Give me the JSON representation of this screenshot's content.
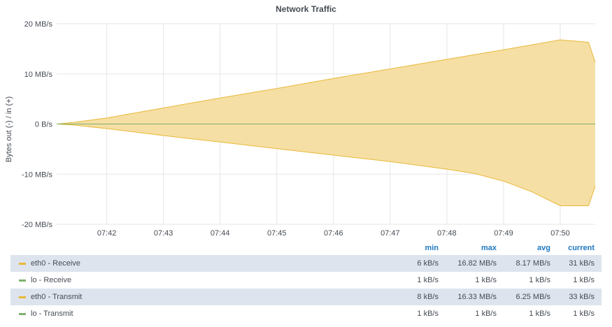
{
  "panel": {
    "title": "Network Traffic"
  },
  "chart_data": {
    "type": "area",
    "title": "Network Traffic",
    "ylabel": "Bytes out (-) / in (+)",
    "xlabel": "",
    "y_unit": "MB/s",
    "ylim": [
      -20,
      20
    ],
    "y_ticks": [
      20,
      10,
      0,
      -10,
      -20
    ],
    "y_tick_labels": [
      "20 MB/s",
      "10 MB/s",
      "0 B/s",
      "-10 MB/s",
      "-20 MB/s"
    ],
    "x_ticks": [
      "07:42",
      "07:43",
      "07:44",
      "07:45",
      "07:46",
      "07:47",
      "07:48",
      "07:49",
      "07:50"
    ],
    "grid": true,
    "series": [
      {
        "name": "eth0 - Receive",
        "color": "#eab839",
        "fill": "#f5dfa4",
        "x": [
          "07:41:07",
          "07:41:24",
          "07:42:00",
          "07:43:00",
          "07:44:00",
          "07:45:00",
          "07:46:00",
          "07:47:00",
          "07:48:00",
          "07:49:00",
          "07:50:00",
          "07:50:30",
          "07:50:37"
        ],
        "values": [
          0.0,
          0.3,
          1.2,
          3.2,
          5.2,
          7.1,
          9.1,
          11.0,
          12.9,
          14.8,
          16.8,
          16.3,
          12.3
        ]
      },
      {
        "name": "eth0 - Transmit",
        "color": "#eab839",
        "fill": "#f5dfa4",
        "x": [
          "07:41:07",
          "07:41:24",
          "07:42:00",
          "07:43:00",
          "07:44:00",
          "07:45:00",
          "07:46:00",
          "07:47:00",
          "07:48:00",
          "07:48:30",
          "07:49:00",
          "07:49:30",
          "07:50:00",
          "07:50:30",
          "07:50:37"
        ],
        "values": [
          0.0,
          -0.2,
          -0.9,
          -2.3,
          -3.6,
          -4.9,
          -6.2,
          -7.5,
          -9.0,
          -9.9,
          -11.4,
          -13.5,
          -16.3,
          -16.3,
          -12.4
        ]
      },
      {
        "name": "lo - Receive",
        "color": "#7eb26d",
        "x": [
          "07:41:07",
          "07:50:37"
        ],
        "values": [
          0.001,
          0.001
        ]
      },
      {
        "name": "lo - Transmit",
        "color": "#7eb26d",
        "x": [
          "07:41:07",
          "07:50:37"
        ],
        "values": [
          -0.001,
          -0.001
        ]
      }
    ]
  },
  "legend": {
    "headers": {
      "min": "min",
      "max": "max",
      "avg": "avg",
      "current": "current"
    },
    "rows": [
      {
        "name": "eth0 - Receive",
        "color": "#eab839",
        "min": "6 kB/s",
        "max": "16.82 MB/s",
        "avg": "8.17 MB/s",
        "current": "31 kB/s"
      },
      {
        "name": "lo - Receive",
        "color": "#7eb26d",
        "min": "1 kB/s",
        "max": "1 kB/s",
        "avg": "1 kB/s",
        "current": "1 kB/s"
      },
      {
        "name": "eth0 - Transmit",
        "color": "#eab839",
        "min": "8 kB/s",
        "max": "16.33 MB/s",
        "avg": "6.25 MB/s",
        "current": "33 kB/s"
      },
      {
        "name": "lo - Transmit",
        "color": "#7eb26d",
        "min": "1 kB/s",
        "max": "1 kB/s",
        "avg": "1 kB/s",
        "current": "1 kB/s"
      }
    ]
  }
}
